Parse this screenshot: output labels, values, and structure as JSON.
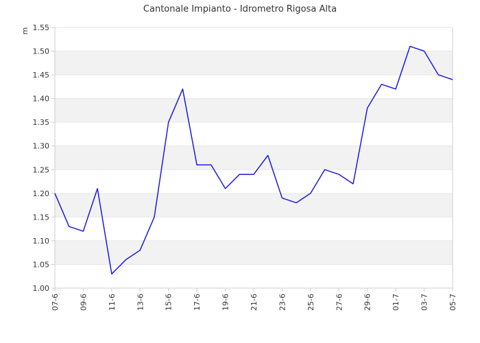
{
  "chart_data": {
    "type": "line",
    "title": "Cantonale Impianto - Idrometro Rigosa Alta",
    "xlabel": "",
    "ylabel": "m",
    "ylim": [
      1.0,
      1.55
    ],
    "yticks": [
      "1.00",
      "1.05",
      "1.10",
      "1.15",
      "1.20",
      "1.25",
      "1.30",
      "1.35",
      "1.40",
      "1.45",
      "1.50",
      "1.55"
    ],
    "x_tick_labels": [
      "07-6",
      "09-6",
      "11-6",
      "13-6",
      "15-6",
      "17-6",
      "19-6",
      "21-6",
      "23-6",
      "25-6",
      "27-6",
      "29-6",
      "01-7",
      "03-7",
      "05-7"
    ],
    "grid": "horizontal alternating bands",
    "colors": {
      "line": "#1a1ae6",
      "band": "#f2f2f2",
      "axis": "#cccccc"
    },
    "series": [
      {
        "values": [
          1.2,
          1.13,
          1.12,
          1.21,
          1.03,
          1.06,
          1.08,
          1.15,
          1.35,
          1.42,
          1.26,
          1.26,
          1.21,
          1.24,
          1.24,
          1.28,
          1.19,
          1.18,
          1.2,
          1.25,
          1.24,
          1.22,
          1.38,
          1.43,
          1.42,
          1.51,
          1.5,
          1.45,
          1.44
        ]
      }
    ]
  }
}
